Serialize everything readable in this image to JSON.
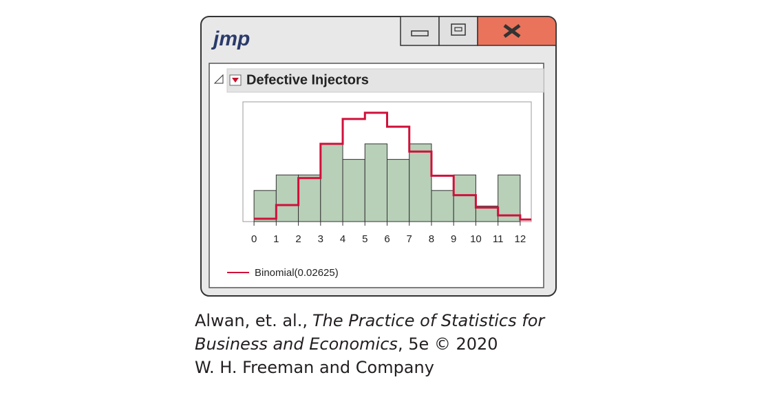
{
  "window": {
    "logo": "jmp"
  },
  "panel": {
    "title": "Defective Injectors"
  },
  "chart_data": {
    "type": "histogram",
    "bins": [
      0,
      1,
      2,
      3,
      4,
      5,
      6,
      7,
      8,
      9,
      10,
      11,
      12
    ],
    "values": [
      2,
      3,
      3,
      5,
      4,
      5,
      4,
      5,
      2,
      3,
      1,
      3
    ],
    "color": "#b8cfb8",
    "xlim": [
      -0.5,
      12.5
    ],
    "ylim": [
      0,
      7.7
    ],
    "xticks": [
      0,
      1,
      2,
      3,
      4,
      5,
      6,
      7,
      8,
      9,
      10,
      11,
      12
    ],
    "fit": {
      "name": "Binomial(0.02625)",
      "color": "#d0103a",
      "x": [
        0,
        1,
        2,
        3,
        4,
        5,
        6,
        7,
        8,
        9,
        10,
        11,
        12
      ],
      "values": [
        0.18,
        1.06,
        2.8,
        5.0,
        6.6,
        7.0,
        6.1,
        4.5,
        2.95,
        1.7,
        0.9,
        0.4,
        0.13
      ]
    }
  },
  "caption": {
    "lines": [
      [
        "Alwan, et. al.,",
        "The Practice of Statistics for"
      ],
      [
        "Business and Economics",
        ", 5e © 2020"
      ],
      [
        "W. H. Freeman and Company"
      ]
    ]
  }
}
